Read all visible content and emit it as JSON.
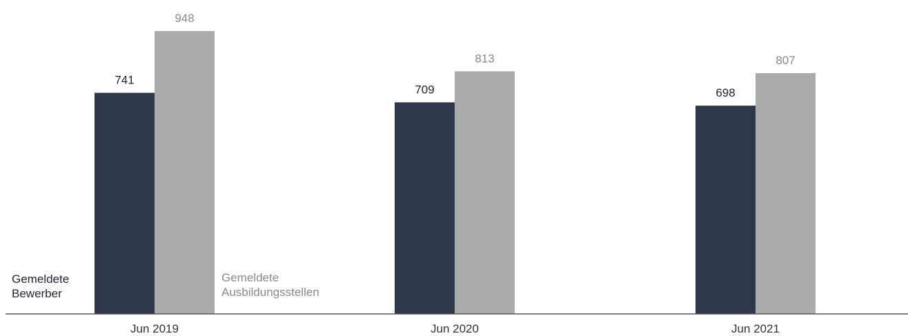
{
  "chart_data": {
    "type": "bar",
    "categories": [
      "Jun 2019",
      "Jun 2020",
      "Jun 2021"
    ],
    "series": [
      {
        "name": "Gemeldete Bewerber",
        "legend_lines": [
          "Gemeldete",
          "Bewerber"
        ],
        "values": [
          741,
          709,
          698
        ],
        "color": "#2f374c",
        "label_color": "#1f2433"
      },
      {
        "name": "Gemeldete Ausbildungsstellen",
        "legend_lines": [
          "Gemeldete",
          "Ausbildungsstellen"
        ],
        "values": [
          948,
          813,
          807
        ],
        "color": "#ababab",
        "label_color": "#8a8a8a"
      }
    ],
    "ylim": [
      0,
      1000
    ],
    "grid": false,
    "data_labels": true,
    "legend": "inline-left-of-first-group"
  }
}
